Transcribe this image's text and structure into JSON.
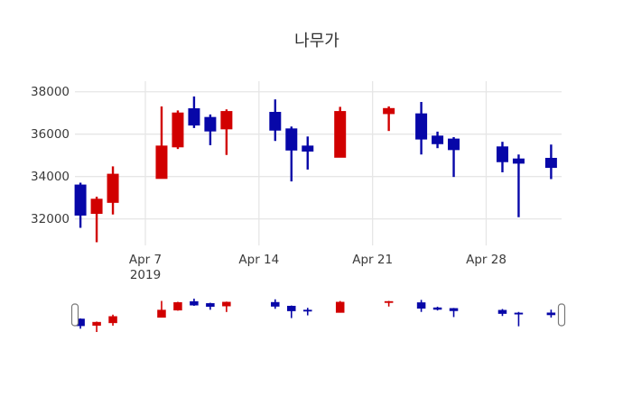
{
  "chart_data": {
    "type": "candlestick",
    "title": "나무가",
    "xlabel": "",
    "ylabel": "",
    "legend": null,
    "grid": true,
    "rangeslider": true,
    "ylim": [
      30750,
      38500
    ],
    "mini_ylim": [
      30900,
      37780
    ],
    "y_ticks": [
      32000,
      34000,
      36000,
      38000
    ],
    "x_ticks": [
      {
        "label": "Apr 7",
        "sublabel": "2019",
        "date": "2019-04-07"
      },
      {
        "label": "Apr 14",
        "sublabel": "",
        "date": "2019-04-14"
      },
      {
        "label": "Apr 21",
        "sublabel": "",
        "date": "2019-04-21"
      },
      {
        "label": "Apr 28",
        "sublabel": "",
        "date": "2019-04-28"
      }
    ],
    "colors": {
      "increasing": "#d10000",
      "decreasing": "#0707a8",
      "gridline": "#e6e6e6",
      "handle_border": "#777777",
      "handle_fill": "#ffffff"
    },
    "candles": [
      {
        "date": "2019-04-03",
        "open": 33600,
        "high": 33710,
        "low": 31580,
        "close": 32180
      },
      {
        "date": "2019-04-04",
        "open": 32260,
        "high": 33050,
        "low": 30900,
        "close": 32930
      },
      {
        "date": "2019-04-05",
        "open": 32780,
        "high": 34480,
        "low": 32210,
        "close": 34110
      },
      {
        "date": "2019-04-08",
        "open": 33910,
        "high": 37310,
        "low": 33910,
        "close": 35440
      },
      {
        "date": "2019-04-09",
        "open": 35400,
        "high": 37120,
        "low": 35300,
        "close": 37000
      },
      {
        "date": "2019-04-10",
        "open": 37200,
        "high": 37780,
        "low": 36290,
        "close": 36430
      },
      {
        "date": "2019-04-11",
        "open": 36790,
        "high": 36930,
        "low": 35480,
        "close": 36150
      },
      {
        "date": "2019-04-12",
        "open": 36250,
        "high": 37170,
        "low": 35020,
        "close": 37070
      },
      {
        "date": "2019-04-15",
        "open": 37030,
        "high": 37640,
        "low": 35680,
        "close": 36190
      },
      {
        "date": "2019-04-16",
        "open": 36250,
        "high": 36360,
        "low": 33770,
        "close": 35250
      },
      {
        "date": "2019-04-17",
        "open": 35440,
        "high": 35890,
        "low": 34330,
        "close": 35200
      },
      {
        "date": "2019-04-19",
        "open": 34910,
        "high": 37290,
        "low": 34910,
        "close": 37070
      },
      {
        "date": "2019-04-22",
        "open": 36970,
        "high": 37310,
        "low": 36150,
        "close": 37210
      },
      {
        "date": "2019-04-24",
        "open": 36960,
        "high": 37520,
        "low": 35040,
        "close": 35770
      },
      {
        "date": "2019-04-25",
        "open": 35910,
        "high": 36120,
        "low": 35340,
        "close": 35550
      },
      {
        "date": "2019-04-26",
        "open": 35770,
        "high": 35860,
        "low": 33980,
        "close": 35270
      },
      {
        "date": "2019-04-29",
        "open": 35400,
        "high": 35640,
        "low": 34200,
        "close": 34700
      },
      {
        "date": "2019-04-30",
        "open": 34830,
        "high": 35040,
        "low": 32080,
        "close": 34630
      },
      {
        "date": "2019-05-02",
        "open": 34860,
        "high": 35510,
        "low": 33880,
        "close": 34430
      }
    ]
  }
}
